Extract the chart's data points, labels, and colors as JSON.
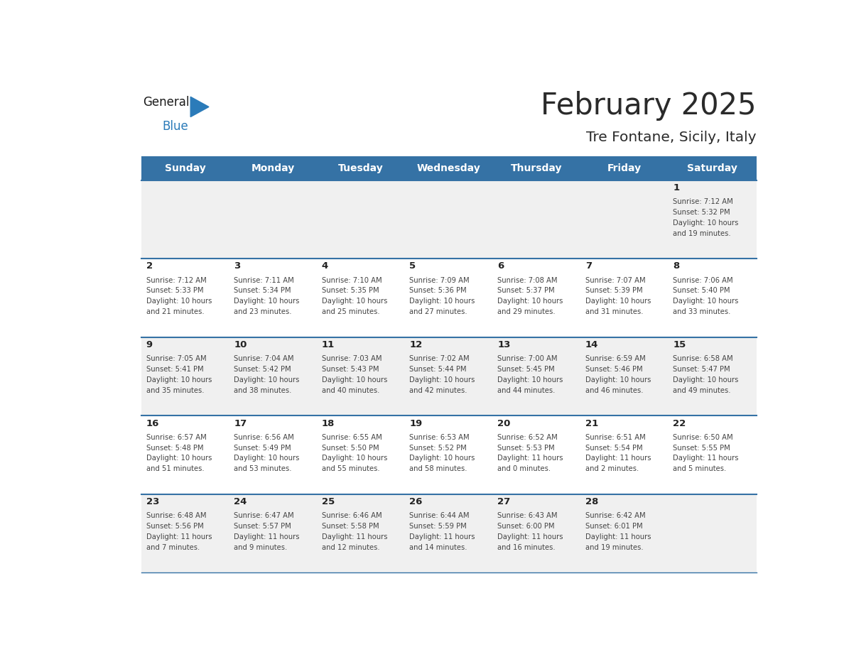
{
  "title": "February 2025",
  "subtitle": "Tre Fontane, Sicily, Italy",
  "header_bg": "#3572a5",
  "header_text_color": "#ffffff",
  "row_bg_odd": "#f0f0f0",
  "row_bg_even": "#ffffff",
  "separator_color": "#3572a5",
  "day_names": [
    "Sunday",
    "Monday",
    "Tuesday",
    "Wednesday",
    "Thursday",
    "Friday",
    "Saturday"
  ],
  "calendar_data": [
    [
      {
        "day": "",
        "sunrise": "",
        "sunset": "",
        "daylight_h": "",
        "daylight_m": ""
      },
      {
        "day": "",
        "sunrise": "",
        "sunset": "",
        "daylight_h": "",
        "daylight_m": ""
      },
      {
        "day": "",
        "sunrise": "",
        "sunset": "",
        "daylight_h": "",
        "daylight_m": ""
      },
      {
        "day": "",
        "sunrise": "",
        "sunset": "",
        "daylight_h": "",
        "daylight_m": ""
      },
      {
        "day": "",
        "sunrise": "",
        "sunset": "",
        "daylight_h": "",
        "daylight_m": ""
      },
      {
        "day": "",
        "sunrise": "",
        "sunset": "",
        "daylight_h": "",
        "daylight_m": ""
      },
      {
        "day": "1",
        "sunrise": "7:12 AM",
        "sunset": "5:32 PM",
        "daylight_h": "10 hours",
        "daylight_m": "and 19 minutes."
      }
    ],
    [
      {
        "day": "2",
        "sunrise": "7:12 AM",
        "sunset": "5:33 PM",
        "daylight_h": "10 hours",
        "daylight_m": "and 21 minutes."
      },
      {
        "day": "3",
        "sunrise": "7:11 AM",
        "sunset": "5:34 PM",
        "daylight_h": "10 hours",
        "daylight_m": "and 23 minutes."
      },
      {
        "day": "4",
        "sunrise": "7:10 AM",
        "sunset": "5:35 PM",
        "daylight_h": "10 hours",
        "daylight_m": "and 25 minutes."
      },
      {
        "day": "5",
        "sunrise": "7:09 AM",
        "sunset": "5:36 PM",
        "daylight_h": "10 hours",
        "daylight_m": "and 27 minutes."
      },
      {
        "day": "6",
        "sunrise": "7:08 AM",
        "sunset": "5:37 PM",
        "daylight_h": "10 hours",
        "daylight_m": "and 29 minutes."
      },
      {
        "day": "7",
        "sunrise": "7:07 AM",
        "sunset": "5:39 PM",
        "daylight_h": "10 hours",
        "daylight_m": "and 31 minutes."
      },
      {
        "day": "8",
        "sunrise": "7:06 AM",
        "sunset": "5:40 PM",
        "daylight_h": "10 hours",
        "daylight_m": "and 33 minutes."
      }
    ],
    [
      {
        "day": "9",
        "sunrise": "7:05 AM",
        "sunset": "5:41 PM",
        "daylight_h": "10 hours",
        "daylight_m": "and 35 minutes."
      },
      {
        "day": "10",
        "sunrise": "7:04 AM",
        "sunset": "5:42 PM",
        "daylight_h": "10 hours",
        "daylight_m": "and 38 minutes."
      },
      {
        "day": "11",
        "sunrise": "7:03 AM",
        "sunset": "5:43 PM",
        "daylight_h": "10 hours",
        "daylight_m": "and 40 minutes."
      },
      {
        "day": "12",
        "sunrise": "7:02 AM",
        "sunset": "5:44 PM",
        "daylight_h": "10 hours",
        "daylight_m": "and 42 minutes."
      },
      {
        "day": "13",
        "sunrise": "7:00 AM",
        "sunset": "5:45 PM",
        "daylight_h": "10 hours",
        "daylight_m": "and 44 minutes."
      },
      {
        "day": "14",
        "sunrise": "6:59 AM",
        "sunset": "5:46 PM",
        "daylight_h": "10 hours",
        "daylight_m": "and 46 minutes."
      },
      {
        "day": "15",
        "sunrise": "6:58 AM",
        "sunset": "5:47 PM",
        "daylight_h": "10 hours",
        "daylight_m": "and 49 minutes."
      }
    ],
    [
      {
        "day": "16",
        "sunrise": "6:57 AM",
        "sunset": "5:48 PM",
        "daylight_h": "10 hours",
        "daylight_m": "and 51 minutes."
      },
      {
        "day": "17",
        "sunrise": "6:56 AM",
        "sunset": "5:49 PM",
        "daylight_h": "10 hours",
        "daylight_m": "and 53 minutes."
      },
      {
        "day": "18",
        "sunrise": "6:55 AM",
        "sunset": "5:50 PM",
        "daylight_h": "10 hours",
        "daylight_m": "and 55 minutes."
      },
      {
        "day": "19",
        "sunrise": "6:53 AM",
        "sunset": "5:52 PM",
        "daylight_h": "10 hours",
        "daylight_m": "and 58 minutes."
      },
      {
        "day": "20",
        "sunrise": "6:52 AM",
        "sunset": "5:53 PM",
        "daylight_h": "11 hours",
        "daylight_m": "and 0 minutes."
      },
      {
        "day": "21",
        "sunrise": "6:51 AM",
        "sunset": "5:54 PM",
        "daylight_h": "11 hours",
        "daylight_m": "and 2 minutes."
      },
      {
        "day": "22",
        "sunrise": "6:50 AM",
        "sunset": "5:55 PM",
        "daylight_h": "11 hours",
        "daylight_m": "and 5 minutes."
      }
    ],
    [
      {
        "day": "23",
        "sunrise": "6:48 AM",
        "sunset": "5:56 PM",
        "daylight_h": "11 hours",
        "daylight_m": "and 7 minutes."
      },
      {
        "day": "24",
        "sunrise": "6:47 AM",
        "sunset": "5:57 PM",
        "daylight_h": "11 hours",
        "daylight_m": "and 9 minutes."
      },
      {
        "day": "25",
        "sunrise": "6:46 AM",
        "sunset": "5:58 PM",
        "daylight_h": "11 hours",
        "daylight_m": "and 12 minutes."
      },
      {
        "day": "26",
        "sunrise": "6:44 AM",
        "sunset": "5:59 PM",
        "daylight_h": "11 hours",
        "daylight_m": "and 14 minutes."
      },
      {
        "day": "27",
        "sunrise": "6:43 AM",
        "sunset": "6:00 PM",
        "daylight_h": "11 hours",
        "daylight_m": "and 16 minutes."
      },
      {
        "day": "28",
        "sunrise": "6:42 AM",
        "sunset": "6:01 PM",
        "daylight_h": "11 hours",
        "daylight_m": "and 19 minutes."
      },
      {
        "day": "",
        "sunrise": "",
        "sunset": "",
        "daylight_h": "",
        "daylight_m": ""
      }
    ]
  ],
  "logo_general_color": "#1a1a1a",
  "logo_blue_color": "#2b7bb9",
  "logo_triangle_color": "#2b7bb9"
}
